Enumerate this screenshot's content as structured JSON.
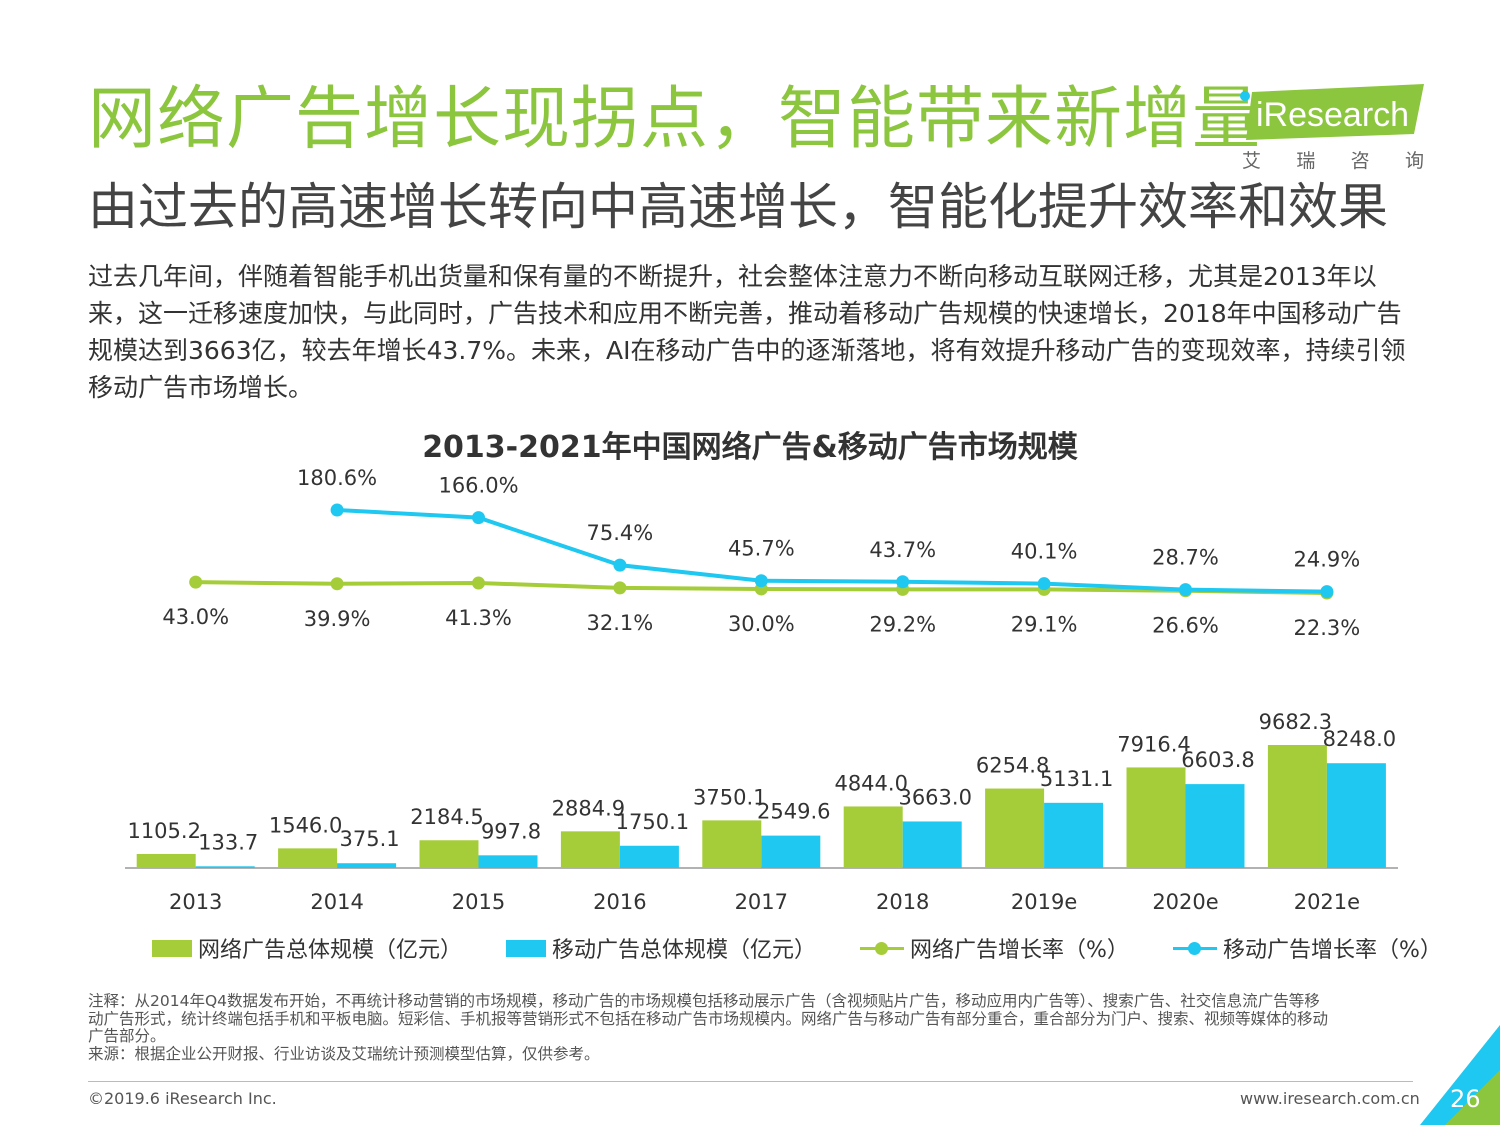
{
  "title": "网络广告增长现拐点，智能带来新增量",
  "subtitle": "由过去的高速增长转向中高速增长，智能化提升效率和效果",
  "logo": {
    "text": "iResearch",
    "sub": [
      "艾",
      "瑞",
      "咨",
      "询"
    ]
  },
  "paragraph": "过去几年间，伴随着智能手机出货量和保有量的不断提升，社会整体注意力不断向移动互联网迁移，尤其是2013年以来，这一迁移速度加快，与此同时，广告技术和应用不断完善，推动着移动广告规模的快速增长，2018年中国移动广告规模达到3663亿，较去年增长43.7%。未来，AI在移动广告中的逐渐落地，将有效提升移动广告的变现效率，持续引领移动广告市场增长。",
  "chart_data": {
    "type": "bar",
    "title": "2013-2021年中国网络广告&移动广告市场规模",
    "categories": [
      "2013",
      "2014",
      "2015",
      "2016",
      "2017",
      "2018",
      "2019e",
      "2020e",
      "2021e"
    ],
    "series": [
      {
        "name": "网络广告总体规模（亿元）",
        "type": "bar",
        "color": "#a5cd39",
        "values": [
          1105.2,
          1546.0,
          2184.5,
          2884.9,
          3750.1,
          4844.0,
          6254.8,
          7916.4,
          9682.3
        ],
        "labels": [
          "1105.2",
          "1546.0",
          "2184.5",
          "2884.9",
          "3750.1",
          "4844.0",
          "6254.8",
          "7916.4",
          "9682.3"
        ]
      },
      {
        "name": "移动广告总体规模（亿元）",
        "type": "bar",
        "color": "#1ec8f0",
        "values": [
          133.7,
          375.1,
          997.8,
          1750.1,
          2549.6,
          3663.0,
          5131.1,
          6603.8,
          8248.0
        ],
        "labels": [
          "133.7",
          "375.1",
          "997.8",
          "1750.1",
          "2549.6",
          "3663.0",
          "5131.1",
          "6603.8",
          "8248.0"
        ]
      },
      {
        "name": "网络广告增长率（%）",
        "type": "line",
        "color": "#a5cd39",
        "values": [
          43.0,
          39.9,
          41.3,
          32.1,
          30.0,
          29.2,
          29.1,
          26.6,
          22.3
        ],
        "labels": [
          "43.0%",
          "39.9%",
          "41.3%",
          "32.1%",
          "30.0%",
          "29.2%",
          "29.1%",
          "26.6%",
          "22.3%"
        ]
      },
      {
        "name": "移动广告增长率（%）",
        "type": "line",
        "color": "#1ec8f0",
        "values": [
          null,
          180.6,
          166.0,
          75.4,
          45.7,
          43.7,
          40.1,
          28.7,
          24.9
        ],
        "labels": [
          "",
          "180.6%",
          "166.0%",
          "75.4%",
          "45.7%",
          "43.7%",
          "40.1%",
          "28.7%",
          "24.9%"
        ]
      }
    ],
    "legend_position": "bottom",
    "grid": false
  },
  "note_lines": [
    "注释：从2014年Q4数据发布开始，不再统计移动营销的市场规模，移动广告的市场规模包括移动展示广告（含视频贴片广告，移动应用内广告等）、搜索广告、社交信息流广告等移",
    "动广告形式，统计终端包括手机和平板电脑。短彩信、手机报等营销形式不包括在移动广告市场规模内。网络广告与移动广告有部分重合，重合部分为门户、搜索、视频等媒体的移动",
    "广告部分。",
    "来源：根据企业公开财报、行业访谈及艾瑞统计预测模型估算，仅供参考。"
  ],
  "footer": {
    "copyright": "©2019.6 iResearch Inc.",
    "website": "www.iresearch.com.cn",
    "page": "26"
  },
  "colors": {
    "green": "#a5cd39",
    "blue": "#1ec8f0",
    "title_green": "#8cc63f"
  }
}
